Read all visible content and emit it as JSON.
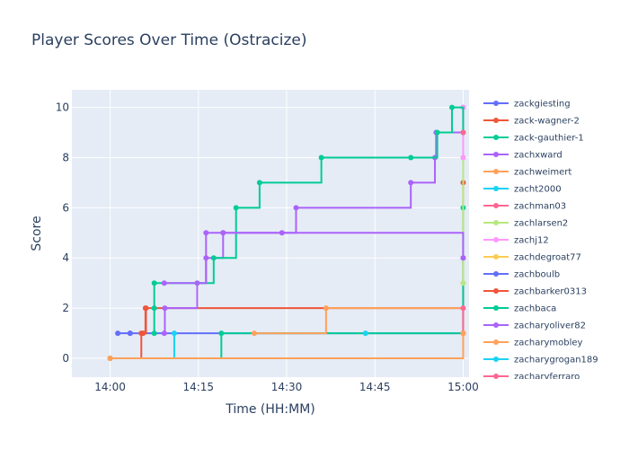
{
  "chart_data": {
    "type": "line",
    "title": "Player Scores Over Time (Ostracize)",
    "xlabel": "Time (HH:MM)",
    "ylabel": "Score",
    "x_ticks": [
      "14:00",
      "14:15",
      "14:30",
      "14:45",
      "15:00"
    ],
    "x_tick_minutes": [
      0,
      15,
      30,
      45,
      60
    ],
    "xlim_minutes": [
      -6.5,
      61
    ],
    "y_ticks": [
      0,
      2,
      4,
      6,
      8,
      10
    ],
    "ylim": [
      -0.75,
      10.7
    ],
    "step_shape": "hv",
    "legend_position": "right, scrollable",
    "grid": true,
    "background": "#e5ecf6",
    "series": [
      {
        "name": "zackgiesting",
        "color": "#636efa",
        "x": [
          3.4,
          60
        ],
        "y": [
          1,
          4
        ]
      },
      {
        "name": "zack-wagner-2",
        "color": "#ef553b",
        "x": [
          0,
          5.3,
          6.1,
          60
        ],
        "y": [
          0,
          1,
          2,
          7
        ]
      },
      {
        "name": "zack-gauthier-1",
        "color": "#00cc96",
        "x": [
          0,
          18.9,
          60
        ],
        "y": [
          0,
          1,
          6
        ]
      },
      {
        "name": "zachxward",
        "color": "#ab63fa",
        "x": [
          9.2,
          9.3,
          14.8,
          16.3,
          19.2,
          29.2,
          31.6,
          51.1,
          55.2,
          55.4,
          60
        ],
        "y": [
          1,
          2,
          3,
          4,
          5,
          5,
          6,
          7,
          8,
          9,
          10
        ]
      },
      {
        "name": "zachweimert",
        "color": "#ffa15a",
        "x": [
          24.5,
          36.7,
          60
        ],
        "y": [
          1,
          2,
          1
        ]
      },
      {
        "name": "zacht2000",
        "color": "#19d3f3",
        "x": [
          0,
          10.9
        ],
        "y": [
          0,
          1
        ]
      },
      {
        "name": "zachman03",
        "color": "#ff6692",
        "x": [
          60,
          60
        ],
        "y": [
          1,
          2
        ]
      },
      {
        "name": "zachlarsen2",
        "color": "#b6e880",
        "x": [
          60,
          60
        ],
        "y": [
          3,
          8
        ]
      },
      {
        "name": "zachj12",
        "color": "#ff97ff",
        "x": [
          60,
          60
        ],
        "y": [
          8,
          10
        ]
      },
      {
        "name": "zachdegroat77",
        "color": "#fecb52",
        "x": [
          0
        ],
        "y": [
          0
        ]
      },
      {
        "name": "zachboulb",
        "color": "#636efa",
        "x": [
          1.3,
          3.4
        ],
        "y": [
          1,
          1
        ]
      },
      {
        "name": "zachbarker0313",
        "color": "#ef553b",
        "x": [
          5.6,
          6.0
        ],
        "y": [
          1,
          2
        ]
      },
      {
        "name": "zachbaca",
        "color": "#00cc96",
        "x": [
          7.5,
          7.5,
          7.5,
          17.6,
          21.4,
          25.4,
          35.9,
          51.1,
          55.6,
          58.1,
          60
        ],
        "y": [
          1,
          2,
          3,
          4,
          6,
          7,
          8,
          8,
          9,
          10,
          9
        ]
      },
      {
        "name": "zacharyoliver82",
        "color": "#ab63fa",
        "x": [
          9.2,
          16.3,
          19.2,
          60
        ],
        "y": [
          3,
          5,
          5,
          4
        ]
      },
      {
        "name": "zacharymobley",
        "color": "#ffa15a",
        "x": [
          0,
          60
        ],
        "y": [
          0,
          1
        ]
      },
      {
        "name": "zacharygrogan189",
        "color": "#19d3f3",
        "x": [
          43.4
        ],
        "y": [
          1
        ]
      },
      {
        "name": "zacharyferraro",
        "color": "#ff6692",
        "x": [
          60
        ],
        "y": [
          9
        ]
      }
    ]
  }
}
